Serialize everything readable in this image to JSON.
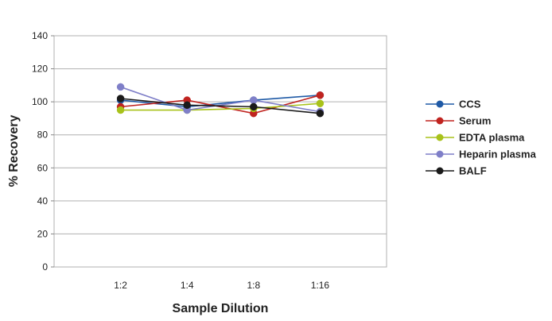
{
  "chart_data": {
    "type": "line",
    "title": "",
    "xlabel": "Sample Dilution",
    "ylabel": "% Recovery",
    "categories": [
      "1:2",
      "1:4",
      "1:8",
      "1:16"
    ],
    "ylim": [
      0,
      140
    ],
    "yticks": [
      0,
      20,
      40,
      60,
      80,
      100,
      120,
      140
    ],
    "grid": "horizontal",
    "legend_position": "right",
    "series": [
      {
        "name": "CCS",
        "color": "#1f5aa6",
        "values": [
          101,
          97,
          101,
          104
        ]
      },
      {
        "name": "Serum",
        "color": "#c0231f",
        "values": [
          97,
          101,
          93,
          104
        ]
      },
      {
        "name": "EDTA plasma",
        "color": "#a8c21a",
        "values": [
          95,
          95,
          96,
          99
        ]
      },
      {
        "name": "Heparin plasma",
        "color": "#7f7fc8",
        "values": [
          109,
          95,
          101,
          94
        ]
      },
      {
        "name": "BALF",
        "color": "#1a1a1a",
        "values": [
          102,
          98,
          97,
          93
        ]
      }
    ]
  }
}
